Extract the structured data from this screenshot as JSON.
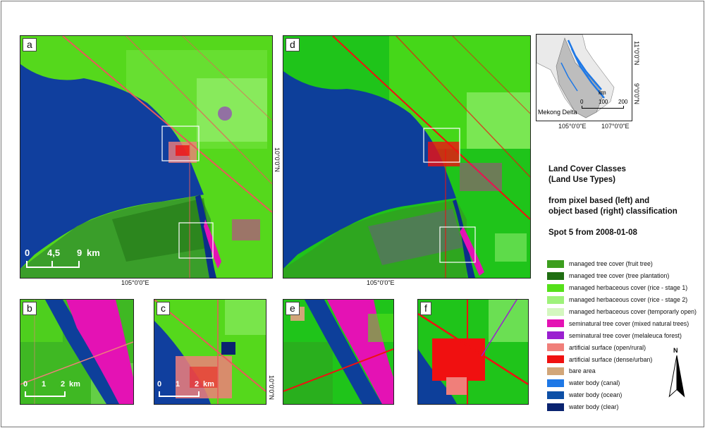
{
  "panels": {
    "a": {
      "label": "a",
      "scale": {
        "t0": "0",
        "t1": "4,5",
        "t2": "9",
        "unit": "km"
      }
    },
    "d": {
      "label": "d"
    },
    "b": {
      "label": "b",
      "scale": {
        "t0": "0",
        "t1": "1",
        "t2": "2",
        "unit": "km"
      }
    },
    "c": {
      "label": "c",
      "scale": {
        "t0": "0",
        "t1": "1",
        "t2": "2",
        "unit": "km"
      }
    },
    "e": {
      "label": "e"
    },
    "f": {
      "label": "f"
    }
  },
  "coords": {
    "lon_a": "105°0'0\"E",
    "lon_d": "105°0'0\"E",
    "lat_a": "10°0'0\"N",
    "lat_c": "10°0'0\"N"
  },
  "inset": {
    "place": "Mekong Delta",
    "km": "km",
    "ticks": [
      "0",
      "100",
      "200"
    ],
    "lon1": "105°0'0\"E",
    "lon2": "107°0'0\"E",
    "lat1": "11°0'0\"N",
    "lat2": "9°0'0\"N"
  },
  "title": {
    "line1": "Land Cover Classes",
    "line2": "(Land Use Types)",
    "line3": "from pixel based (left) and",
    "line4": "object based (right) classification",
    "line5": "Spot 5 from 2008-01-08"
  },
  "legend": [
    {
      "label": "managed tree cover (fruit tree)",
      "color": "#3c9e1e"
    },
    {
      "label": "managed tree cover (tree plantation)",
      "color": "#1f6e12"
    },
    {
      "label": "managed herbaceous cover (rice - stage 1)",
      "color": "#55e01a"
    },
    {
      "label": "managed herbaceous cover (rice - stage 2)",
      "color": "#9ef27a"
    },
    {
      "label": "managed herbaceous cover (temporarly open)",
      "color": "#d4f7bf"
    },
    {
      "label": "seminatural tree cover (mixed natural trees)",
      "color": "#e412b4"
    },
    {
      "label": "seminatural tree cover (melaleuca forest)",
      "color": "#9a1fd0"
    },
    {
      "label": "artificial surface (open/rural)",
      "color": "#f07f7a"
    },
    {
      "label": "artificial surface (dense/urban)",
      "color": "#f01010"
    },
    {
      "label": "bare area",
      "color": "#d2a679"
    },
    {
      "label": "water body (canal)",
      "color": "#1e78e6"
    },
    {
      "label": "water body (ocean)",
      "color": "#0d4fa6"
    },
    {
      "label": "water body (clear)",
      "color": "#0a2370"
    }
  ],
  "north": "N"
}
